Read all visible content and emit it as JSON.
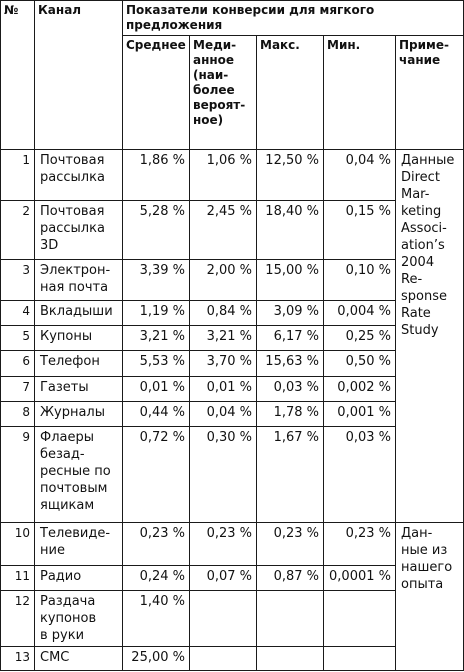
{
  "header": {
    "num": "№",
    "channel": "Канал",
    "group": "Показатели конверсии для мягкого предложения",
    "avg": "Среднее",
    "median": "Меди-\nанное\n(наи-\nболее\nвероят-\nное)",
    "max": "Макс.",
    "min": "Мин.",
    "note": "Приме-\nчание"
  },
  "rows": [
    {
      "n": "1",
      "channel": "Почтовая\nрассылка",
      "avg": "1,86 %",
      "median": "1,06 %",
      "max": "12,50 %",
      "min": "0,04 %"
    },
    {
      "n": "2",
      "channel": "Почтовая\nрассылка\n3D",
      "avg": "5,28 %",
      "median": "2,45 %",
      "max": "18,40 %",
      "min": "0,15 %"
    },
    {
      "n": "3",
      "channel": "Электрон-\nная почта",
      "avg": "3,39 %",
      "median": "2,00 %",
      "max": "15,00 %",
      "min": "0,10 %"
    },
    {
      "n": "4",
      "channel": "Вкладыши",
      "avg": "1,19 %",
      "median": "0,84 %",
      "max": "3,09 %",
      "min": "0,004 %"
    },
    {
      "n": "5",
      "channel": "Купоны",
      "avg": "3,21 %",
      "median": "3,21 %",
      "max": "6,17 %",
      "min": "0,25 %"
    },
    {
      "n": "6",
      "channel": "Телефон",
      "avg": "5,53 %",
      "median": "3,70 %",
      "max": "15,63 %",
      "min": "0,50 %"
    },
    {
      "n": "7",
      "channel": "Газеты",
      "avg": "0,01 %",
      "median": "0,01 %",
      "max": "0,03 %",
      "min": "0,002 %"
    },
    {
      "n": "8",
      "channel": "Журналы",
      "avg": "0,44 %",
      "median": "0,04 %",
      "max": "1,78 %",
      "min": "0,001 %"
    },
    {
      "n": "9",
      "channel": "Флаеры\nбезад-\nресные по\nпочтовым\nящикам",
      "avg": "0,72 %",
      "median": "0,30 %",
      "max": "1,67 %",
      "min": "0,03 %"
    },
    {
      "n": "10",
      "channel": "Телевиде-\nние",
      "avg": "0,23 %",
      "median": "0,23 %",
      "max": "0,23 %",
      "min": "0,23 %"
    },
    {
      "n": "11",
      "channel": "Радио",
      "avg": "0,24 %",
      "median": "0,07 %",
      "max": "0,87 %",
      "min": "0,0001 %"
    },
    {
      "n": "12",
      "channel": "Раздача\nкупонов\nв руки",
      "avg": "1,40 %",
      "median": "",
      "max": "",
      "min": ""
    },
    {
      "n": "13",
      "channel": "СМС",
      "avg": "25,00 %",
      "median": "",
      "max": "",
      "min": ""
    }
  ],
  "notes": {
    "dma": "Данные\nDirect\nMar-\nketing\nAssoci-\nation’s\n2004\nRe-\nsponse\nRate\nStudy",
    "own": "Дан-\nные из\nнашего\nопыта"
  }
}
